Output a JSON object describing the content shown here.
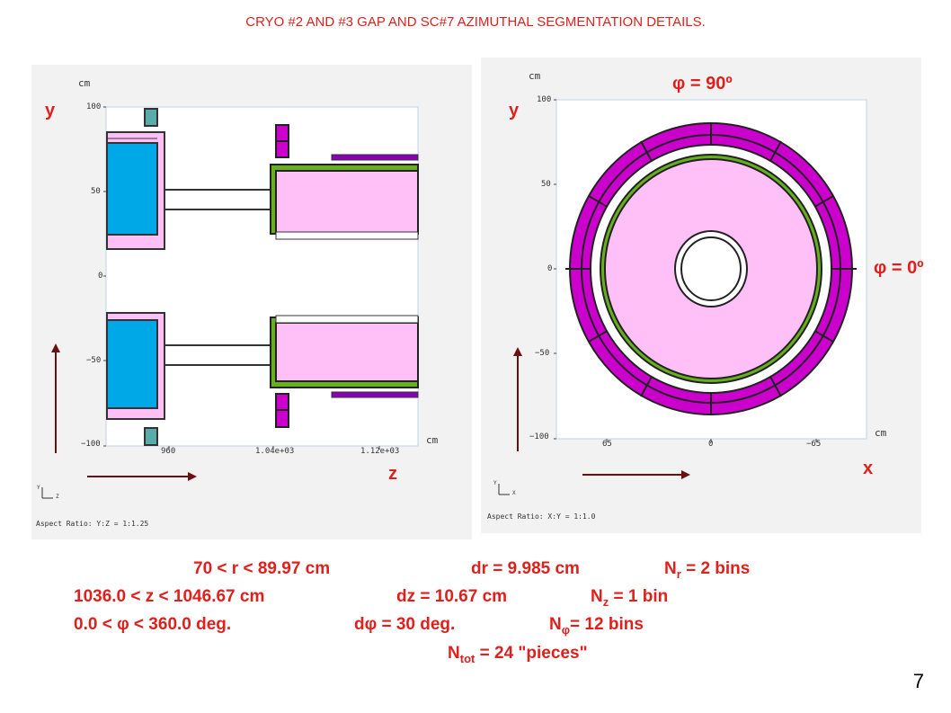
{
  "title": "CRYO #2 AND #3   GAP AND SC#7  AZIMUTHAL SEGMENTATION DETAILS.",
  "left_plot": {
    "unit_top": "cm",
    "unit_right": "cm",
    "y_ticks": [
      "100",
      "50",
      "0",
      "−50",
      "−100"
    ],
    "x_ticks": [
      "960",
      "1.04e+03",
      "1.12e+03"
    ],
    "axis_y_label": "y",
    "axis_z_label": "z",
    "aspect_ratio": "Aspect Ratio: Y:Z = 1:1.25",
    "triad_y": "Y",
    "triad_x": "Z"
  },
  "right_plot": {
    "unit_top": "cm",
    "unit_right": "cm",
    "y_ticks": [
      "100",
      "50",
      "0",
      "−50",
      "−100"
    ],
    "x_ticks": [
      "65",
      "0",
      "−65"
    ],
    "axis_y_label": "y",
    "axis_x_label": "x",
    "phi_90": "φ = 90º",
    "phi_0": "φ = 0º",
    "aspect_ratio": "Aspect Ratio: X:Y = 1:1.0",
    "triad_y": "Y",
    "triad_x": "X"
  },
  "info": {
    "row1_range": "70 < r < 89.97 cm",
    "row1_delta": "dr =  9.985 cm",
    "row1_n_prefix": "N",
    "row1_n_sub": "r",
    "row1_n_suffix": " = 2 bins",
    "row2_range": "1036.0 < z < 1046.67 cm",
    "row2_delta": "dz = 10.67 cm",
    "row2_n_prefix": "N",
    "row2_n_sub": "z",
    "row2_n_suffix": " = 1 bin",
    "row3_range": "0.0 < φ < 360.0 deg.",
    "row3_delta": "dφ = 30 deg.",
    "row3_n_prefix": "N",
    "row3_n_sub": "φ",
    "row3_n_suffix": "= 12 bins",
    "row4_prefix": "N",
    "row4_sub": "tot",
    "row4_suffix": " = 24  \"pieces\""
  },
  "page_number": "7",
  "colors": {
    "accent_red": "#e0201c",
    "magenta": "#cc00cc",
    "pink": "#ffc0f8",
    "blue": "#00a8e8",
    "green": "#66b020",
    "teal": "#5aacaa",
    "arrow": "#6b0f10"
  }
}
